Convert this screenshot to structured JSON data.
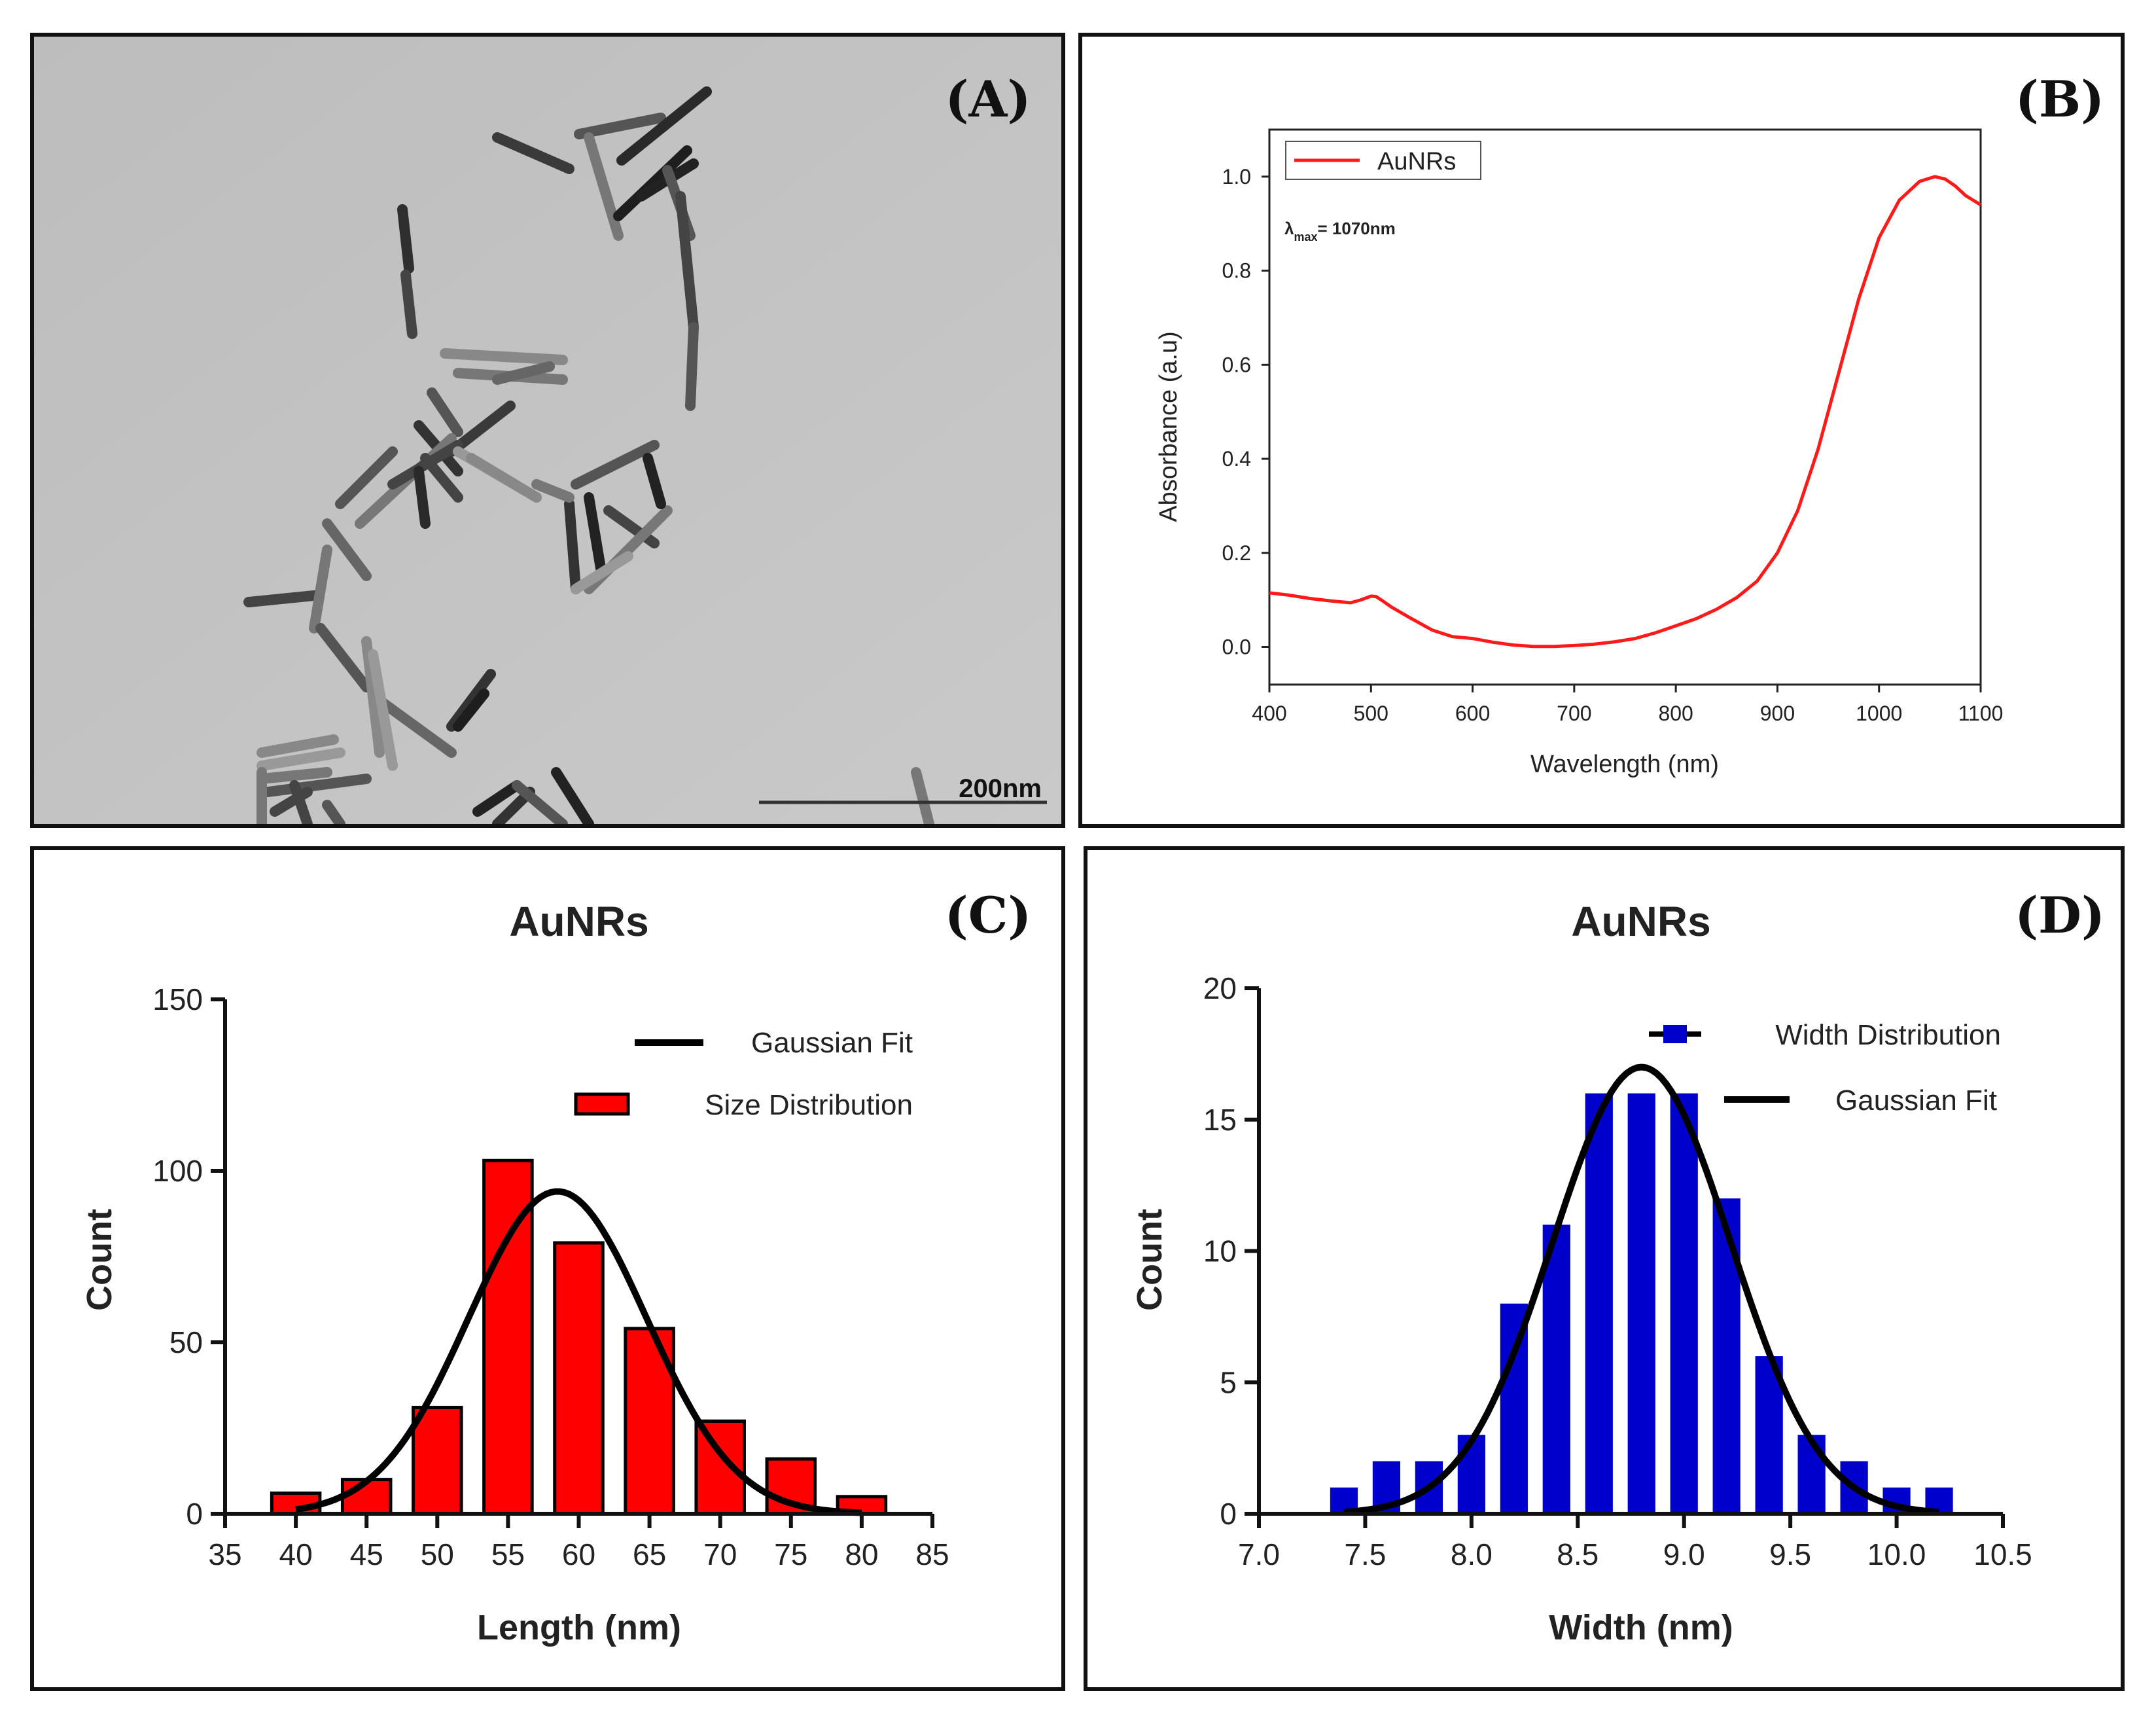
{
  "figure": {
    "panels": [
      {
        "id": "A",
        "letter": "(A)",
        "type": "image",
        "description_label": "TEM micrograph of gold nanorods",
        "scale_bar_label": "200nm"
      },
      {
        "id": "B",
        "letter": "(B)",
        "chart_data": {
          "type": "line",
          "title": "",
          "xlabel": "Wavelength (nm)",
          "ylabel": "Absorbance (a.u)",
          "xlim": [
            400,
            1100
          ],
          "ylim": [
            -0.08,
            1.1
          ],
          "xticks": [
            400,
            500,
            600,
            700,
            800,
            900,
            1000,
            1100
          ],
          "yticks": [
            0.0,
            0.2,
            0.4,
            0.6,
            0.8,
            1.0
          ],
          "ytick_labels": [
            "0.0",
            "0.2",
            "0.4",
            "0.6",
            "0.8",
            "1.0"
          ],
          "legend": [
            "AuNRs"
          ],
          "legend_position": "top-left",
          "annotation": {
            "symbol": "λ",
            "subscript": "max",
            "text": "= 1070nm"
          },
          "series": [
            {
              "name": "AuNRs",
              "color": "#ff1a1a",
              "x": [
                400,
                420,
                440,
                460,
                480,
                490,
                500,
                505,
                510,
                520,
                540,
                560,
                580,
                600,
                620,
                640,
                660,
                680,
                700,
                720,
                740,
                760,
                780,
                800,
                820,
                840,
                860,
                880,
                900,
                920,
                940,
                960,
                980,
                1000,
                1020,
                1040,
                1055,
                1065,
                1075,
                1085,
                1100
              ],
              "y": [
                0.115,
                0.11,
                0.103,
                0.098,
                0.094,
                0.1,
                0.108,
                0.107,
                0.1,
                0.085,
                0.06,
                0.036,
                0.022,
                0.018,
                0.01,
                0.004,
                0.001,
                0.001,
                0.003,
                0.006,
                0.011,
                0.018,
                0.03,
                0.045,
                0.06,
                0.08,
                0.105,
                0.14,
                0.2,
                0.29,
                0.42,
                0.58,
                0.74,
                0.87,
                0.95,
                0.99,
                1.0,
                0.995,
                0.98,
                0.96,
                0.94
              ]
            }
          ]
        }
      },
      {
        "id": "C",
        "letter": "(C)",
        "chart_data": {
          "type": "bar",
          "title": "AuNRs",
          "xlabel": "Length (nm)",
          "ylabel": "Count",
          "xlim": [
            35,
            85
          ],
          "ylim": [
            0,
            150
          ],
          "xticks": [
            35,
            40,
            45,
            50,
            55,
            60,
            65,
            70,
            75,
            80,
            85
          ],
          "yticks": [
            0,
            50,
            100,
            150
          ],
          "bar_width": 3.4,
          "bar_color": "#ff0000",
          "legend": [
            "Gaussian Fit",
            "Size Distribution"
          ],
          "legend_position": "top-right",
          "bins": [
            40,
            45,
            50,
            55,
            60,
            65,
            70,
            75,
            80
          ],
          "values": [
            6,
            10,
            31,
            103,
            79,
            54,
            27,
            16,
            5
          ],
          "gaussian_fit": {
            "amplitude": 94,
            "mean": 58.5,
            "sigma": 6.3,
            "range": [
              40,
              80
            ]
          }
        }
      },
      {
        "id": "D",
        "letter": "(D)",
        "chart_data": {
          "type": "bar",
          "title": "AuNRs",
          "xlabel": "Width (nm)",
          "ylabel": "Count",
          "xlim": [
            7.0,
            10.5
          ],
          "ylim": [
            0,
            20
          ],
          "xticks": [
            7.0,
            7.5,
            8.0,
            8.5,
            9.0,
            9.5,
            10.0,
            10.5
          ],
          "xtick_labels": [
            "7.0",
            "7.5",
            "8.0",
            "8.5",
            "9.0",
            "9.5",
            "10.0",
            "10.5"
          ],
          "yticks": [
            0,
            5,
            10,
            15,
            20
          ],
          "bar_width": 0.13,
          "bar_color": "#0000cc",
          "legend": [
            "Width Distribution",
            "Gaussian Fit"
          ],
          "legend_position": "top-right",
          "bins": [
            7.4,
            7.6,
            7.8,
            8.0,
            8.2,
            8.4,
            8.6,
            8.8,
            9.0,
            9.2,
            9.4,
            9.6,
            9.8,
            10.0,
            10.2
          ],
          "values": [
            1,
            2,
            2,
            3,
            8,
            11,
            16,
            16,
            16,
            12,
            6,
            3,
            2,
            1,
            1
          ],
          "gaussian_fit": {
            "amplitude": 17,
            "mean": 8.8,
            "sigma": 0.42,
            "range": [
              7.4,
              10.2
            ]
          }
        }
      }
    ]
  }
}
